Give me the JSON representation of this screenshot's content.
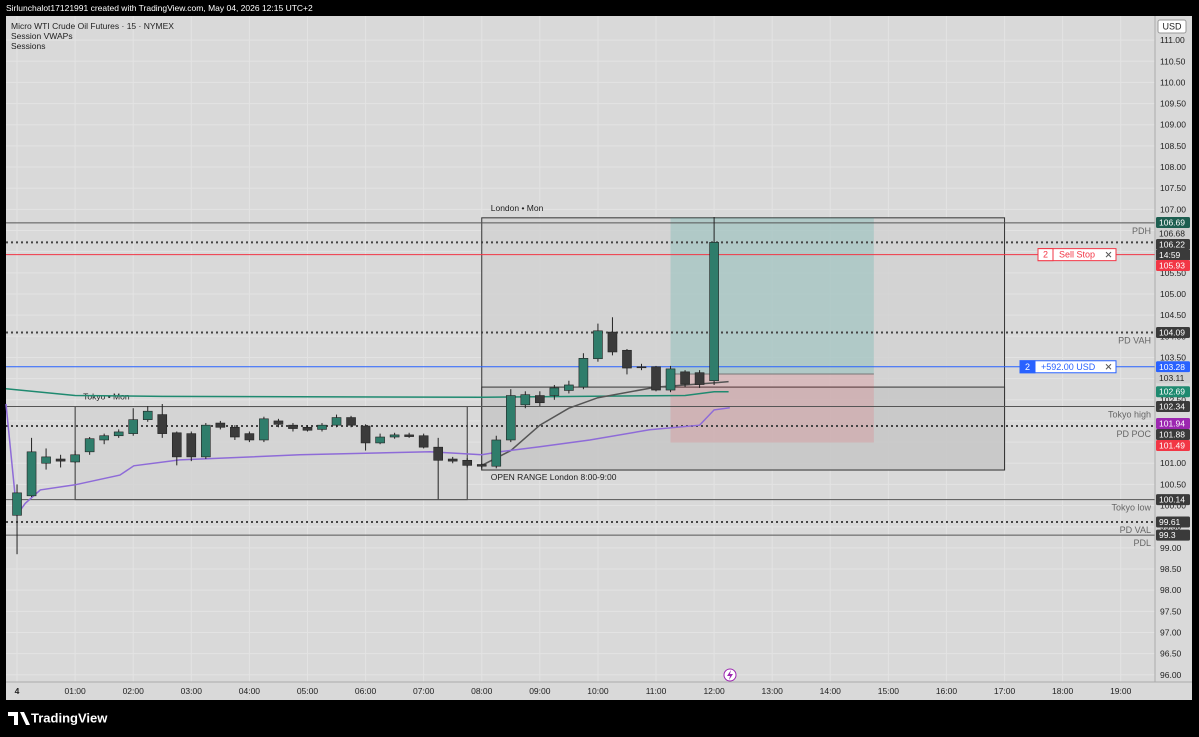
{
  "header": {
    "attribution": "Sirlunchalot17121991 created with TradingView.com, May 04, 2026 12:15 UTC+2",
    "symbol": "Micro WTI Crude Oil Futures · 15 · NYMEX",
    "indicators": [
      "Session VWAPs",
      "Sessions"
    ]
  },
  "chart_data": {
    "type": "candlestick",
    "currency": "USD",
    "grid": true,
    "up_color": "#2f7d6b",
    "down_color": "#3b3b3b",
    "x": [
      0,
      0.25,
      0.5,
      0.75,
      1,
      1.25,
      1.5,
      1.75,
      2,
      2.25,
      2.5,
      2.75,
      3,
      3.25,
      3.5,
      3.75,
      4,
      4.25,
      4.5,
      4.75,
      5,
      5.25,
      5.5,
      5.75,
      6,
      6.25,
      6.5,
      6.75,
      7,
      7.25,
      7.5,
      7.75,
      8,
      8.25,
      8.5,
      8.75,
      9,
      9.25,
      9.5,
      9.75,
      10,
      10.25,
      10.5,
      10.75,
      11,
      11.25,
      11.5,
      11.75,
      12
    ],
    "open": [
      99.77,
      100.23,
      101.0,
      101.1,
      101.03,
      101.27,
      101.55,
      101.65,
      101.7,
      102.03,
      102.15,
      101.72,
      101.7,
      101.15,
      101.95,
      101.85,
      101.7,
      101.55,
      102.0,
      101.9,
      101.85,
      101.8,
      101.9,
      102.08,
      101.88,
      101.48,
      101.62,
      101.67,
      101.65,
      101.38,
      101.1,
      101.07,
      100.97,
      100.93,
      101.55,
      102.38,
      102.6,
      102.6,
      102.72,
      102.8,
      103.47,
      104.1,
      103.67,
      103.28,
      103.28,
      102.73,
      103.16,
      103.14,
      102.95
    ],
    "high": [
      100.5,
      101.6,
      101.35,
      101.2,
      101.3,
      101.62,
      101.7,
      101.8,
      102.3,
      102.35,
      102.4,
      101.75,
      101.75,
      101.95,
      102.0,
      101.9,
      101.75,
      102.1,
      102.05,
      101.95,
      101.9,
      101.95,
      102.15,
      102.12,
      101.92,
      101.7,
      101.72,
      101.72,
      101.7,
      101.6,
      101.15,
      101.12,
      101.0,
      101.65,
      102.75,
      102.7,
      102.7,
      102.85,
      102.95,
      103.6,
      104.3,
      104.45,
      103.7,
      103.35,
      103.3,
      103.3,
      103.2,
      103.2,
      106.82
    ],
    "low": [
      98.85,
      100.2,
      100.85,
      100.9,
      101.0,
      101.2,
      101.45,
      101.6,
      101.65,
      101.98,
      101.6,
      100.95,
      101.05,
      101.1,
      101.8,
      101.55,
      101.5,
      101.5,
      101.85,
      101.75,
      101.75,
      101.75,
      101.85,
      101.85,
      101.3,
      101.45,
      101.58,
      101.6,
      101.35,
      100.15,
      101.0,
      100.9,
      100.88,
      100.88,
      101.5,
      102.3,
      102.35,
      102.5,
      102.65,
      102.75,
      103.4,
      103.55,
      103.1,
      103.2,
      102.7,
      102.68,
      102.8,
      102.78,
      102.85
    ],
    "close": [
      100.3,
      101.27,
      101.15,
      101.05,
      101.2,
      101.58,
      101.65,
      101.74,
      102.03,
      102.23,
      101.7,
      101.15,
      101.15,
      101.9,
      101.85,
      101.62,
      101.55,
      102.05,
      101.92,
      101.82,
      101.78,
      101.9,
      102.08,
      101.9,
      101.48,
      101.62,
      101.67,
      101.63,
      101.38,
      101.07,
      101.05,
      100.95,
      100.93,
      101.55,
      102.6,
      102.62,
      102.43,
      102.78,
      102.85,
      103.48,
      104.13,
      103.63,
      103.25,
      103.26,
      102.73,
      103.23,
      102.87,
      102.86,
      106.22
    ],
    "xlim": [
      -0.19,
      19.59
    ],
    "xticks": [
      {
        "value": 0,
        "label": "4"
      },
      {
        "value": 1,
        "label": "01:00"
      },
      {
        "value": 2,
        "label": "02:00"
      },
      {
        "value": 3,
        "label": "03:00"
      },
      {
        "value": 4,
        "label": "04:00"
      },
      {
        "value": 5,
        "label": "05:00"
      },
      {
        "value": 6,
        "label": "06:00"
      },
      {
        "value": 7,
        "label": "07:00"
      },
      {
        "value": 8,
        "label": "08:00"
      },
      {
        "value": 9,
        "label": "09:00"
      },
      {
        "value": 10,
        "label": "10:00"
      },
      {
        "value": 11,
        "label": "11:00"
      },
      {
        "value": 12,
        "label": "12:00"
      },
      {
        "value": 13,
        "label": "13:00"
      },
      {
        "value": 14,
        "label": "14:00"
      },
      {
        "value": 15,
        "label": "15:00"
      },
      {
        "value": 16,
        "label": "16:00"
      },
      {
        "value": 17,
        "label": "17:00"
      },
      {
        "value": 18,
        "label": "18:00"
      },
      {
        "value": 19,
        "label": "19:00"
      }
    ],
    "ylim": [
      95.83,
      111.57
    ],
    "yticks": [
      {
        "value": 96,
        "label": "96.00"
      },
      {
        "value": 96.5,
        "label": "96.50"
      },
      {
        "value": 97,
        "label": "97.00"
      },
      {
        "value": 97.5,
        "label": "97.50"
      },
      {
        "value": 98,
        "label": "98.00"
      },
      {
        "value": 98.5,
        "label": "98.50"
      },
      {
        "value": 99,
        "label": "99.00"
      },
      {
        "value": 99.5,
        "label": "99.50"
      },
      {
        "value": 100,
        "label": "100.00"
      },
      {
        "value": 100.5,
        "label": "100.50"
      },
      {
        "value": 101,
        "label": "101.00"
      },
      {
        "value": 101.5,
        "label": "101.50"
      },
      {
        "value": 102,
        "label": "102.00"
      },
      {
        "value": 102.5,
        "label": "102.50"
      },
      {
        "value": 103,
        "label": "103.00"
      },
      {
        "value": 103.5,
        "label": "103.50"
      },
      {
        "value": 104,
        "label": "104.00"
      },
      {
        "value": 104.5,
        "label": "104.50"
      },
      {
        "value": 105,
        "label": "105.00"
      },
      {
        "value": 105.5,
        "label": "105.50"
      },
      {
        "value": 106,
        "label": "106.00"
      },
      {
        "value": 106.5,
        "label": "106.50"
      },
      {
        "value": 107,
        "label": "107.00"
      },
      {
        "value": 107.5,
        "label": "107.50"
      },
      {
        "value": 108,
        "label": "108.00"
      },
      {
        "value": 108.5,
        "label": "108.50"
      },
      {
        "value": 109,
        "label": "109.00"
      },
      {
        "value": 109.5,
        "label": "109.50"
      },
      {
        "value": 110,
        "label": "110.00"
      },
      {
        "value": 110.5,
        "label": "110.50"
      },
      {
        "value": 111,
        "label": "111.00"
      }
    ],
    "lines": [
      {
        "color": "#1f8a70",
        "x": [
          -0.19,
          1,
          2.5,
          8,
          11.5,
          12,
          12.25
        ],
        "values": [
          102.76,
          102.6,
          102.58,
          102.56,
          102.6,
          102.69,
          102.69
        ]
      },
      {
        "color": "#555555",
        "x": [
          8,
          8.5,
          9,
          9.5,
          10,
          11,
          12,
          12.25
        ],
        "values": [
          100.95,
          101.3,
          101.9,
          102.3,
          102.55,
          102.8,
          102.9,
          102.93
        ]
      },
      {
        "color": "#8e6bd8",
        "x": [
          -0.19,
          0,
          0.14,
          0.4,
          1,
          1.77,
          2.01,
          2.8,
          4.87,
          7.11,
          8,
          8.31,
          9,
          9.86,
          10.89,
          11.75,
          12,
          12.27
        ],
        "values": [
          102.4,
          99.78,
          100.05,
          100.37,
          100.49,
          100.72,
          100.94,
          101.08,
          101.2,
          101.27,
          101.2,
          101.27,
          101.39,
          101.55,
          101.79,
          101.9,
          102.26,
          102.31
        ]
      }
    ],
    "sessions": [
      {
        "label": "London • Mon",
        "x": [
          8,
          17
        ],
        "y": [
          100.84,
          106.8
        ],
        "fill": "#d0d0d0"
      },
      {
        "label": "OPEN RANGE London 8:00-9:00",
        "x": [
          8,
          17
        ],
        "y": [
          100.84,
          102.8
        ],
        "fill": "#c6c6c6"
      },
      {
        "label": "Tokyo • Mon",
        "x": [
          1,
          7.75
        ],
        "y": [
          100.14,
          102.34
        ],
        "fill": "#d2d2d2"
      }
    ],
    "position": {
      "x": [
        11.25,
        14.75
      ],
      "target": 106.8,
      "entry": 103.11,
      "stop": 101.49
    },
    "levels": [
      {
        "label": "PDH",
        "value": 106.68,
        "style": "solid",
        "color": "#555555"
      },
      {
        "value": 106.22,
        "style": "dotted",
        "color": "#444444"
      },
      {
        "label": "PD VAH",
        "value": 104.09,
        "style": "dotted",
        "color": "#444444"
      },
      {
        "label": "Tokyo high",
        "value": 102.34,
        "style": "solid",
        "color": "#555555"
      },
      {
        "label": "PD POC",
        "value": 101.88,
        "style": "dotted",
        "color": "#444444"
      },
      {
        "label": "Tokyo low",
        "value": 100.14,
        "style": "solid",
        "color": "#555555"
      },
      {
        "label": "PD VAL",
        "value": 99.61,
        "style": "dotted",
        "color": "#444444"
      },
      {
        "label": "PDL",
        "value": 99.3,
        "style": "solid",
        "color": "#555555"
      }
    ],
    "order": {
      "qty": "2",
      "label": "Sell Stop",
      "value": 105.93,
      "color": "#f23645"
    },
    "pnl": {
      "qty": "2",
      "label": "+592.00 USD",
      "value": 103.28,
      "color": "#2962ff"
    },
    "countdown": "14:59",
    "price_tags": [
      {
        "value": 106.69,
        "bg": "#1d5e50",
        "fg": "#ffffff"
      },
      {
        "value": 106.68,
        "bg": "#cfcfcf",
        "fg": "#222222"
      },
      {
        "value": 106.22,
        "bg": "#3a3a3a",
        "fg": "#ffffff"
      },
      {
        "value": 105.93,
        "bg": "#f23645",
        "fg": "#ffffff"
      },
      {
        "value": 104.09,
        "bg": "#3a3a3a",
        "fg": "#ffffff"
      },
      {
        "value": 103.28,
        "bg": "#2962ff",
        "fg": "#ffffff"
      },
      {
        "value": 103.11,
        "bg": "#cfcfcf",
        "fg": "#222222"
      },
      {
        "value": 102.69,
        "bg": "#1f8a70",
        "fg": "#ffffff"
      },
      {
        "value": 102.34,
        "bg": "#3a3a3a",
        "fg": "#ffffff"
      },
      {
        "value": 101.94,
        "bg": "#9c27b0",
        "fg": "#ffffff"
      },
      {
        "value": 101.88,
        "bg": "#3a3a3a",
        "fg": "#ffffff"
      },
      {
        "value": 101.49,
        "bg": "#f23645",
        "fg": "#ffffff"
      },
      {
        "value": 100.14,
        "bg": "#3a3a3a",
        "fg": "#ffffff"
      },
      {
        "value": 99.61,
        "bg": "#3a3a3a",
        "fg": "#ffffff"
      },
      {
        "value": 99.3,
        "bg": "#3a3a3a",
        "fg": "#ffffff"
      }
    ]
  },
  "footer": {
    "brand": "TradingView"
  }
}
